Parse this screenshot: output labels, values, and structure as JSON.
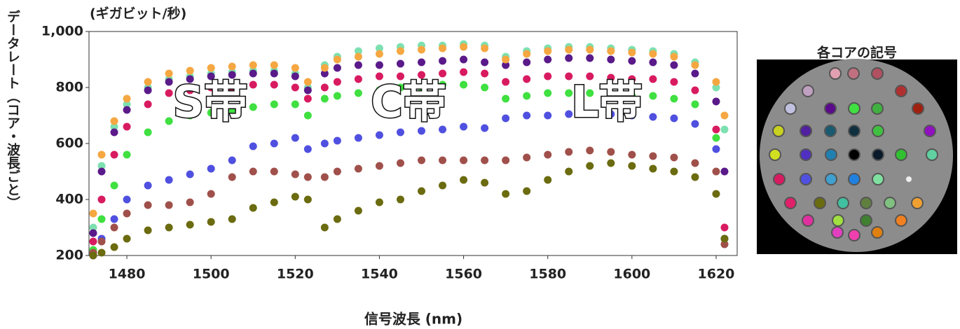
{
  "chart_data": {
    "type": "scatter",
    "y_unit": "(ギガビット/秒)",
    "y_label": "データレート（コア・波長ごと）",
    "x_label": "信号波長 (nm)",
    "annotations": [
      "S帯",
      "C帯",
      "L帯"
    ],
    "legend_title": "各コアの記号",
    "xlim": [
      1471,
      1625
    ],
    "ylim": [
      200,
      1000
    ],
    "xticks": [
      1480,
      1500,
      1520,
      1540,
      1560,
      1580,
      1600,
      1620
    ],
    "yticks": [
      200,
      400,
      600,
      800,
      {
        "value": 1000,
        "label": "1,000"
      }
    ],
    "x": [
      1472,
      1474,
      1477,
      1480,
      1485,
      1490,
      1495,
      1500,
      1505,
      1510,
      1515,
      1520,
      1523,
      1527,
      1530,
      1535,
      1540,
      1545,
      1550,
      1555,
      1560,
      1565,
      1570,
      1575,
      1580,
      1585,
      1590,
      1595,
      1600,
      1605,
      1610,
      1615,
      1620,
      1622
    ],
    "series": [
      {
        "color": "#7de0b0",
        "values": [
          300,
          520,
          660,
          740,
          800,
          830,
          840,
          850,
          855,
          860,
          860,
          850,
          800,
          880,
          910,
          930,
          940,
          945,
          950,
          950,
          955,
          950,
          910,
          930,
          940,
          945,
          945,
          940,
          935,
          930,
          920,
          890,
          800,
          650
        ]
      },
      {
        "color": "#5a1a8a",
        "values": [
          280,
          500,
          640,
          720,
          790,
          820,
          830,
          840,
          845,
          850,
          850,
          840,
          790,
          850,
          870,
          880,
          880,
          885,
          890,
          895,
          900,
          890,
          880,
          890,
          900,
          905,
          905,
          900,
          895,
          890,
          880,
          850,
          750,
          500
        ]
      },
      {
        "color": "#f5a742",
        "values": [
          350,
          560,
          680,
          760,
          820,
          850,
          860,
          870,
          875,
          880,
          880,
          870,
          820,
          870,
          900,
          910,
          920,
          930,
          935,
          940,
          945,
          940,
          900,
          920,
          930,
          935,
          935,
          930,
          925,
          920,
          910,
          880,
          820,
          700
        ]
      },
      {
        "color": "#d81b60",
        "values": [
          250,
          400,
          560,
          660,
          740,
          780,
          790,
          800,
          800,
          810,
          810,
          800,
          760,
          800,
          820,
          830,
          840,
          840,
          845,
          850,
          855,
          850,
          820,
          830,
          840,
          840,
          840,
          835,
          830,
          830,
          820,
          790,
          650,
          300
        ]
      },
      {
        "color": "#3fe040",
        "values": [
          220,
          330,
          450,
          560,
          640,
          680,
          700,
          710,
          720,
          730,
          740,
          740,
          700,
          760,
          770,
          780,
          790,
          800,
          800,
          810,
          810,
          800,
          760,
          770,
          780,
          780,
          780,
          775,
          770,
          770,
          760,
          740,
          620,
          260
        ]
      },
      {
        "color": "#5050e0",
        "values": [
          200,
          260,
          330,
          400,
          450,
          470,
          490,
          510,
          540,
          590,
          600,
          620,
          580,
          600,
          610,
          620,
          630,
          640,
          645,
          650,
          660,
          655,
          690,
          700,
          700,
          705,
          705,
          705,
          700,
          695,
          690,
          670,
          580,
          260
        ]
      },
      {
        "color": "#a0504a",
        "values": [
          210,
          250,
          300,
          350,
          380,
          380,
          390,
          420,
          480,
          500,
          500,
          490,
          480,
          480,
          500,
          510,
          520,
          530,
          540,
          540,
          540,
          540,
          540,
          550,
          560,
          570,
          575,
          570,
          560,
          555,
          550,
          530,
          500,
          240
        ]
      },
      {
        "color": "#6b6b10",
        "values": [
          200,
          210,
          230,
          260,
          290,
          300,
          310,
          320,
          330,
          370,
          390,
          410,
          400,
          300,
          330,
          360,
          390,
          400,
          430,
          450,
          470,
          460,
          420,
          430,
          470,
          500,
          520,
          530,
          520,
          510,
          500,
          480,
          420,
          260
        ]
      }
    ]
  }
}
